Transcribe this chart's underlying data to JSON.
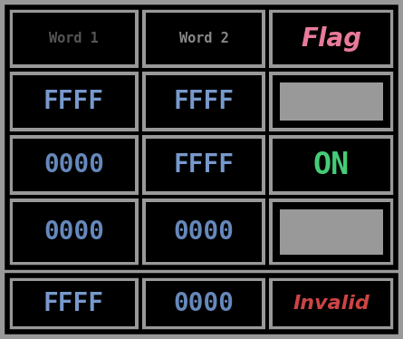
{
  "bg_color": "#999999",
  "gray": "#999999",
  "black": "#000000",
  "word1_color": "#555555",
  "word2_color": "#888888",
  "flag_color": "#e87a9a",
  "blue_bright": "#7799cc",
  "blue_mid": "#6688bb",
  "green": "#44cc77",
  "red": "#cc4444",
  "header_row": [
    "Word 1",
    "Word 2",
    "Flag"
  ],
  "data_rows": [
    [
      "FFFF",
      "FFFF",
      "off_icon"
    ],
    [
      "0000",
      "FFFF",
      "ON"
    ],
    [
      "0000",
      "0000",
      "off_icon"
    ]
  ],
  "bottom_row": [
    "FFFF",
    "0000",
    "Invalid"
  ],
  "fig_w": 4.45,
  "fig_h": 3.74,
  "dpi": 100
}
